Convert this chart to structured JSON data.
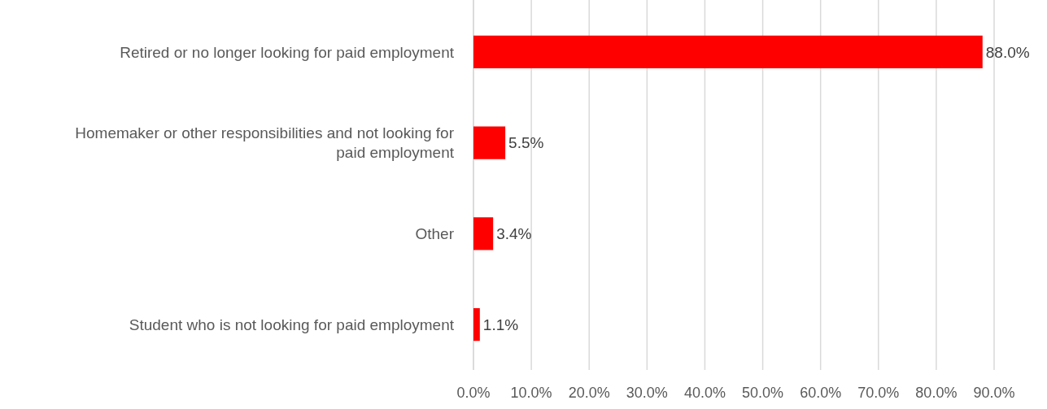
{
  "chart_data": {
    "type": "bar",
    "orientation": "horizontal",
    "categories": [
      "Retired or no longer looking for paid employment",
      "Homemaker or other responsibilities and not looking for paid employment",
      "Other",
      "Student who is not looking for paid employment"
    ],
    "values": [
      88.0,
      5.5,
      3.4,
      1.1
    ],
    "value_labels": [
      "88.0%",
      "5.5%",
      "3.4%",
      "1.1%"
    ],
    "color": "#ff0000",
    "xlim": [
      0,
      90
    ],
    "xticks": [
      {
        "value": 0,
        "label": "0.0%"
      },
      {
        "value": 10,
        "label": "10.0%"
      },
      {
        "value": 20,
        "label": "20.0%"
      },
      {
        "value": 30,
        "label": "30.0%"
      },
      {
        "value": 40,
        "label": "40.0%"
      },
      {
        "value": 50,
        "label": "50.0%"
      },
      {
        "value": 60,
        "label": "60.0%"
      },
      {
        "value": 70,
        "label": "70.0%"
      },
      {
        "value": 80,
        "label": "80.0%"
      },
      {
        "value": 90,
        "label": "90.0%"
      }
    ],
    "grid": "x"
  }
}
